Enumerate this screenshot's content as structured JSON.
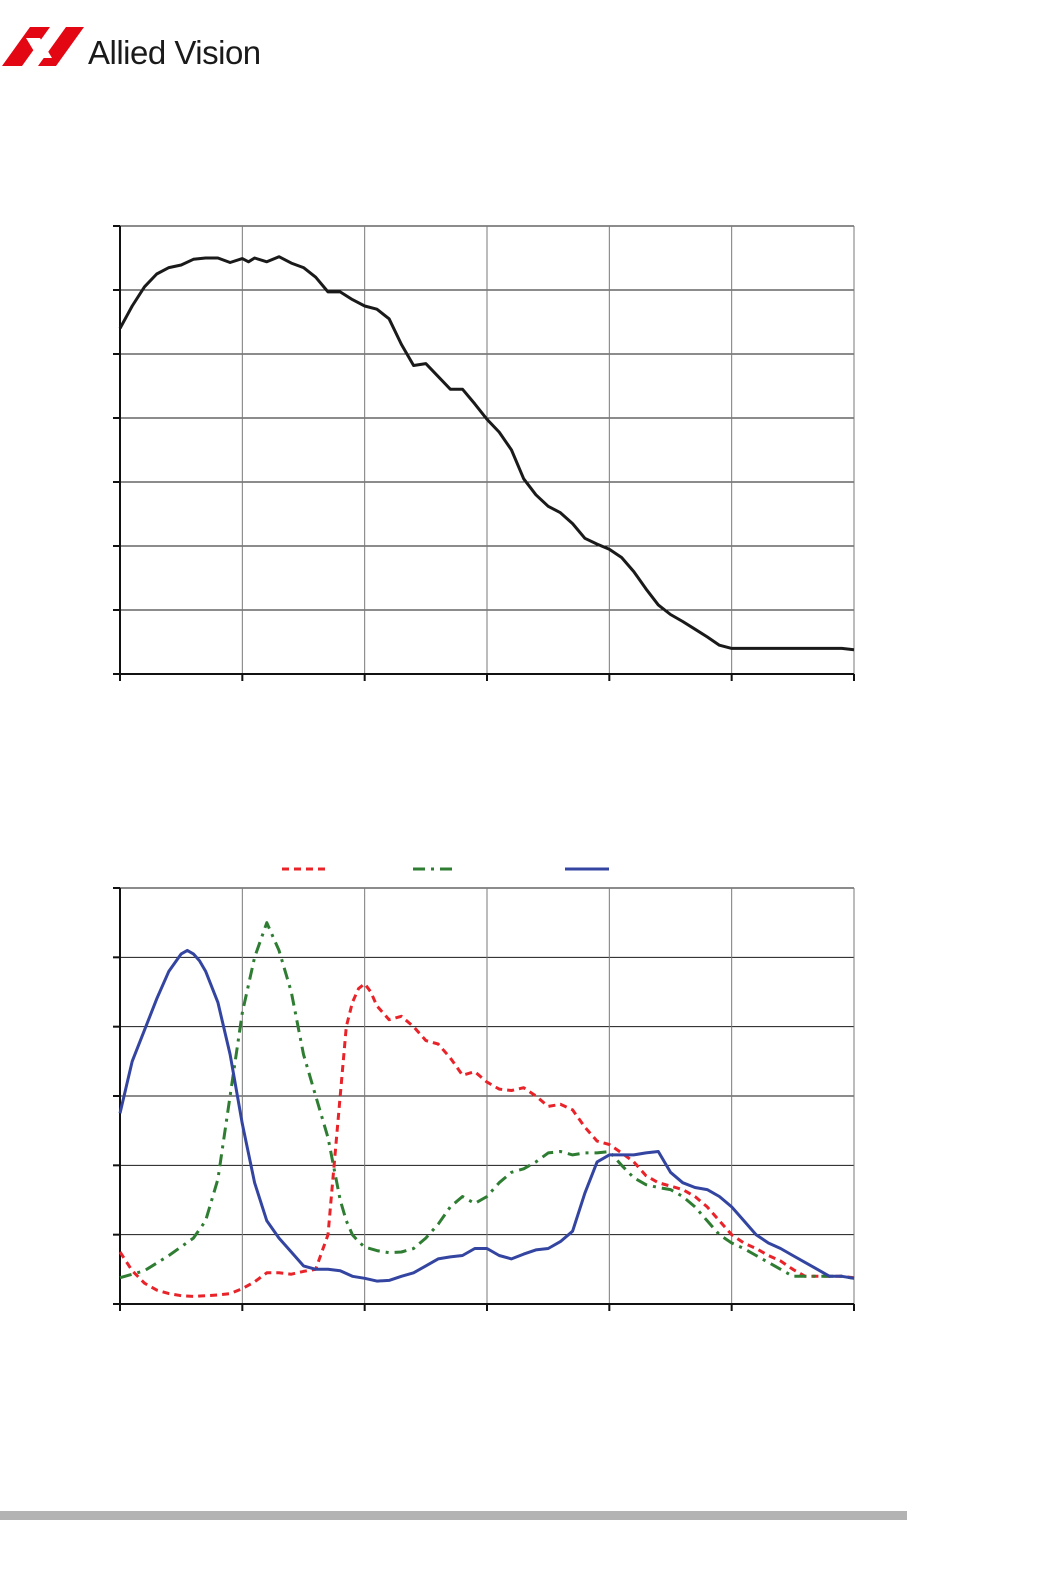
{
  "header": {
    "brand_name": "Allied Vision",
    "logo_color": "#e30613"
  },
  "chart_data": [
    {
      "type": "line",
      "title": "",
      "xlabel": "",
      "ylabel": "",
      "xlim": [
        0,
        6
      ],
      "ylim": [
        0,
        7
      ],
      "grid": true,
      "legend": "none",
      "series": [
        {
          "name": "",
          "color": "#1a1a1a",
          "style": "solid",
          "x": [
            0,
            0.1,
            0.2,
            0.3,
            0.4,
            0.5,
            0.6,
            0.7,
            0.8,
            0.9,
            1.0,
            1.05,
            1.1,
            1.2,
            1.3,
            1.4,
            1.5,
            1.6,
            1.7,
            1.8,
            1.9,
            2.0,
            2.1,
            2.2,
            2.3,
            2.4,
            2.5,
            2.6,
            2.7,
            2.8,
            2.9,
            3.0,
            3.1,
            3.2,
            3.3,
            3.4,
            3.5,
            3.6,
            3.7,
            3.8,
            3.9,
            4.0,
            4.1,
            4.2,
            4.3,
            4.4,
            4.5,
            4.6,
            4.7,
            4.8,
            4.9,
            5.0,
            5.1,
            5.2,
            5.3,
            5.4,
            5.5,
            5.6,
            5.7,
            5.8,
            5.9,
            6.0
          ],
          "y": [
            5.4,
            5.75,
            6.05,
            6.25,
            6.35,
            6.39,
            6.48,
            6.5,
            6.5,
            6.43,
            6.49,
            6.44,
            6.5,
            6.44,
            6.52,
            6.42,
            6.35,
            6.2,
            5.97,
            5.97,
            5.85,
            5.75,
            5.7,
            5.55,
            5.15,
            4.82,
            4.85,
            4.65,
            4.45,
            4.45,
            4.22,
            3.98,
            3.78,
            3.5,
            3.05,
            2.8,
            2.62,
            2.52,
            2.35,
            2.12,
            2.03,
            1.95,
            1.82,
            1.6,
            1.33,
            1.08,
            0.93,
            0.82,
            0.7,
            0.58,
            0.45,
            0.4,
            0.4,
            0.4,
            0.4,
            0.4,
            0.4,
            0.4,
            0.4,
            0.4,
            0.4,
            0.38
          ]
        }
      ]
    },
    {
      "type": "line",
      "title": "",
      "xlabel": "",
      "ylabel": "",
      "xlim": [
        0,
        6
      ],
      "ylim": [
        0,
        6
      ],
      "grid": true,
      "legend": "top",
      "series": [
        {
          "name": "",
          "color": "#e8242a",
          "style": "dashed",
          "x": [
            0,
            0.1,
            0.2,
            0.3,
            0.4,
            0.5,
            0.6,
            0.7,
            0.8,
            0.9,
            1.0,
            1.1,
            1.2,
            1.3,
            1.4,
            1.5,
            1.6,
            1.7,
            1.75,
            1.8,
            1.85,
            1.9,
            1.95,
            2.0,
            2.05,
            2.1,
            2.2,
            2.3,
            2.4,
            2.5,
            2.6,
            2.7,
            2.8,
            2.9,
            3.0,
            3.1,
            3.2,
            3.3,
            3.4,
            3.5,
            3.6,
            3.7,
            3.8,
            3.9,
            4.0,
            4.1,
            4.2,
            4.3,
            4.4,
            4.5,
            4.6,
            4.7,
            4.8,
            4.9,
            5.0,
            5.1,
            5.2,
            5.3,
            5.4,
            5.5,
            5.6,
            5.7,
            5.8,
            5.9,
            6.0
          ],
          "y": [
            0.75,
            0.48,
            0.3,
            0.2,
            0.15,
            0.12,
            0.11,
            0.12,
            0.13,
            0.15,
            0.22,
            0.32,
            0.45,
            0.45,
            0.43,
            0.47,
            0.5,
            1.0,
            2.0,
            3.0,
            4.0,
            4.35,
            4.55,
            4.62,
            4.5,
            4.3,
            4.1,
            4.15,
            4.0,
            3.8,
            3.75,
            3.55,
            3.3,
            3.35,
            3.2,
            3.1,
            3.08,
            3.12,
            3.0,
            2.85,
            2.88,
            2.8,
            2.55,
            2.35,
            2.3,
            2.18,
            2.05,
            1.85,
            1.75,
            1.7,
            1.65,
            1.55,
            1.4,
            1.2,
            1.0,
            0.88,
            0.8,
            0.7,
            0.62,
            0.5,
            0.4,
            0.4,
            0.4,
            0.4,
            0.38
          ]
        },
        {
          "name": "",
          "color": "#2e7d32",
          "style": "dashdot",
          "x": [
            0,
            0.2,
            0.4,
            0.6,
            0.7,
            0.8,
            0.9,
            1.0,
            1.1,
            1.2,
            1.3,
            1.4,
            1.5,
            1.6,
            1.7,
            1.8,
            1.85,
            1.9,
            1.95,
            2.0,
            2.1,
            2.2,
            2.3,
            2.4,
            2.5,
            2.6,
            2.7,
            2.8,
            2.9,
            3.0,
            3.1,
            3.2,
            3.3,
            3.4,
            3.5,
            3.6,
            3.7,
            3.8,
            3.9,
            4.0,
            4.1,
            4.2,
            4.3,
            4.4,
            4.5,
            4.6,
            4.7,
            4.8,
            4.9,
            5.0,
            5.1,
            5.2,
            5.3,
            5.4,
            5.5,
            5.6,
            5.7,
            5.8,
            5.9,
            6.0
          ],
          "y": [
            0.38,
            0.48,
            0.7,
            0.95,
            1.2,
            1.8,
            3.0,
            4.2,
            5.0,
            5.5,
            5.1,
            4.5,
            3.6,
            3.0,
            2.4,
            1.5,
            1.2,
            1.0,
            0.9,
            0.82,
            0.77,
            0.74,
            0.75,
            0.8,
            0.95,
            1.15,
            1.4,
            1.55,
            1.45,
            1.55,
            1.75,
            1.9,
            1.95,
            2.05,
            2.18,
            2.2,
            2.15,
            2.18,
            2.18,
            2.2,
            2.0,
            1.82,
            1.72,
            1.68,
            1.65,
            1.55,
            1.4,
            1.2,
            1.0,
            0.88,
            0.8,
            0.7,
            0.6,
            0.5,
            0.4,
            0.4,
            0.4,
            0.4,
            0.4,
            0.37
          ]
        },
        {
          "name": "",
          "color": "#3345a0",
          "style": "solid",
          "x": [
            0,
            0.1,
            0.2,
            0.3,
            0.4,
            0.5,
            0.55,
            0.6,
            0.65,
            0.7,
            0.8,
            0.9,
            1.0,
            1.1,
            1.2,
            1.3,
            1.4,
            1.5,
            1.6,
            1.7,
            1.8,
            1.9,
            2.0,
            2.1,
            2.2,
            2.3,
            2.4,
            2.5,
            2.6,
            2.7,
            2.8,
            2.9,
            3.0,
            3.1,
            3.2,
            3.3,
            3.4,
            3.5,
            3.6,
            3.7,
            3.8,
            3.9,
            4.0,
            4.1,
            4.2,
            4.3,
            4.4,
            4.5,
            4.6,
            4.7,
            4.8,
            4.9,
            5.0,
            5.1,
            5.2,
            5.3,
            5.4,
            5.5,
            5.6,
            5.7,
            5.8,
            5.9,
            6.0
          ],
          "y": [
            2.75,
            3.5,
            3.95,
            4.4,
            4.8,
            5.05,
            5.1,
            5.05,
            4.95,
            4.8,
            4.35,
            3.6,
            2.6,
            1.75,
            1.2,
            0.95,
            0.75,
            0.55,
            0.5,
            0.5,
            0.48,
            0.4,
            0.37,
            0.33,
            0.34,
            0.4,
            0.45,
            0.55,
            0.65,
            0.68,
            0.7,
            0.8,
            0.8,
            0.7,
            0.65,
            0.72,
            0.78,
            0.8,
            0.9,
            1.05,
            1.6,
            2.05,
            2.15,
            2.15,
            2.15,
            2.18,
            2.2,
            1.9,
            1.75,
            1.68,
            1.65,
            1.55,
            1.4,
            1.2,
            1.0,
            0.88,
            0.8,
            0.7,
            0.6,
            0.5,
            0.4,
            0.4,
            0.37
          ]
        }
      ]
    }
  ]
}
